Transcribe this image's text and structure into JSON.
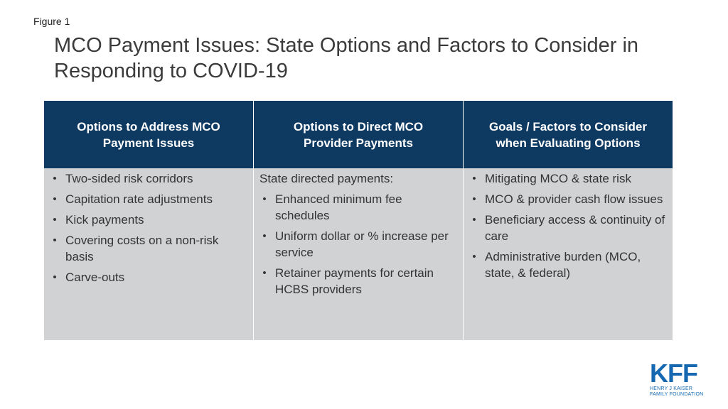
{
  "figure_label": "Figure 1",
  "title": "MCO Payment Issues: State Options and Factors to Consider in Responding to COVID-19",
  "columns": [
    {
      "header": "Options to Address MCO Payment Issues",
      "intro": "",
      "items": [
        "Two-sided risk corridors",
        "Capitation rate adjustments",
        "Kick payments",
        "Covering costs on a non-risk basis",
        "Carve-outs"
      ]
    },
    {
      "header": "Options to Direct MCO Provider Payments",
      "intro": "State directed payments:",
      "items": [
        "Enhanced minimum fee schedules",
        "Uniform dollar or % increase per service",
        "Retainer payments for certain HCBS providers"
      ]
    },
    {
      "header": "Goals / Factors to Consider when Evaluating Options",
      "intro": "",
      "items": [
        "Mitigating MCO & state risk",
        "MCO & provider cash flow issues",
        "Beneficiary access & continuity of care",
        "Administrative burden (MCO, state, & federal)"
      ]
    }
  ],
  "bullet_glyph": "•",
  "logo": {
    "mark": "KFF",
    "line1": "HENRY J KAISER",
    "line2": "FAMILY FOUNDATION"
  },
  "colors": {
    "header_bg": "#0e3a62",
    "body_bg": "#d0d2d4",
    "logo": "#1669b0"
  }
}
